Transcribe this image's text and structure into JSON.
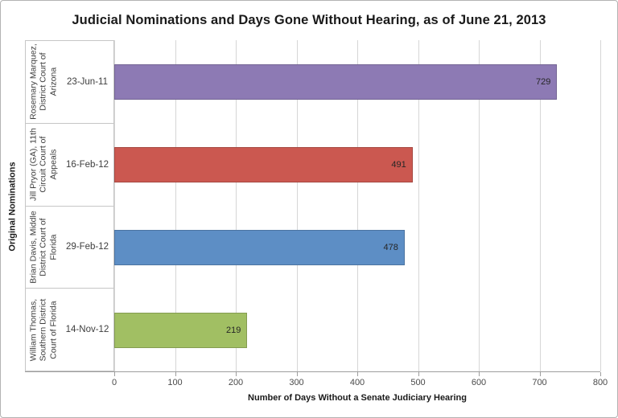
{
  "title": "Judicial Nominations and Days Gone Without Hearing, as of June 21, 2013",
  "chart_data": {
    "type": "bar",
    "orientation": "horizontal",
    "title": "Judicial Nominations and Days Gone Without Hearing, as of June 21, 2013",
    "xlabel": "Number of Days Without a Senate Judiciary Hearing",
    "ylabel": "Original Nominations",
    "xlim": [
      0,
      800
    ],
    "xticks": [
      "0",
      "100",
      "200",
      "300",
      "400",
      "500",
      "600",
      "700",
      "800"
    ],
    "grid": true,
    "legend": false,
    "bars": [
      {
        "nominee": "Rosemary Marquez, District Court of Arizona",
        "date": "23-Jun-11",
        "value": 729,
        "value_label": "729",
        "color": "#8d7ab4"
      },
      {
        "nominee": "Jill Pryor (GA), 11th Circuit Court of Appeals",
        "date": "16-Feb-12",
        "value": 491,
        "value_label": "491",
        "color": "#cb5850"
      },
      {
        "nominee": "Brian Davis, Middle District Court of Florida",
        "date": "29-Feb-12",
        "value": 478,
        "value_label": "478",
        "color": "#5d8ec5"
      },
      {
        "nominee": "William Thomas, Southern District Court of Florida",
        "date": "14-Nov-12",
        "value": 219,
        "value_label": "219",
        "color": "#a1bf63"
      }
    ],
    "colors": {
      "gridline": "#d6d6d6",
      "axis_line": "#9e9e9e",
      "label_box_border": "#c6c6c6"
    }
  }
}
